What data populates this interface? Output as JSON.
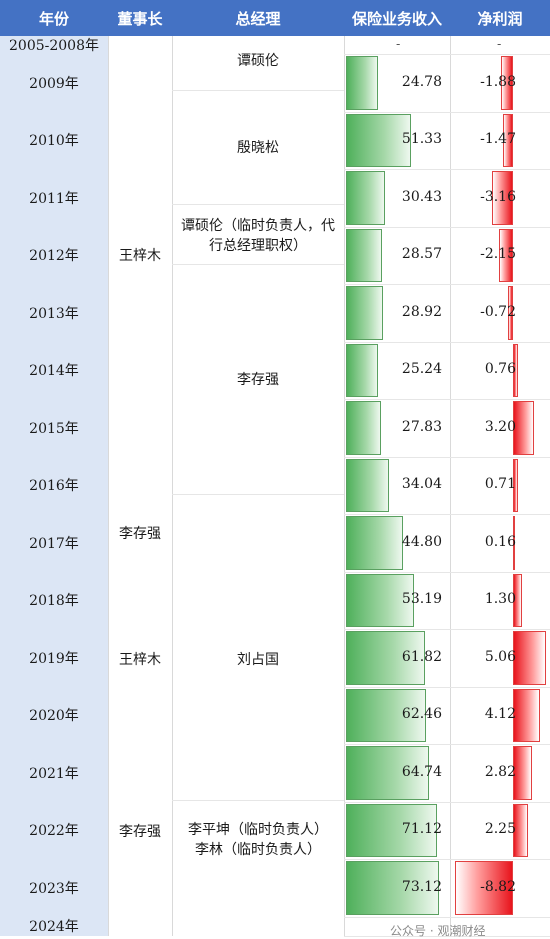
{
  "header": {
    "year": "年份",
    "chairman": "董事长",
    "gm": "总经理",
    "revenue": "保险业务收入",
    "profit": "净利润"
  },
  "rows": [
    {
      "year": "2005-2008年",
      "revenue": "-",
      "profit": "-"
    },
    {
      "year": "2009年",
      "revenue": "24.78",
      "profit": "-1.88"
    },
    {
      "year": "2010年",
      "revenue": "51.33",
      "profit": "-1.47"
    },
    {
      "year": "2011年",
      "revenue": "30.43",
      "profit": "-3.16"
    },
    {
      "year": "2012年",
      "revenue": "28.57",
      "profit": "-2.15"
    },
    {
      "year": "2013年",
      "revenue": "28.92",
      "profit": "-0.72"
    },
    {
      "year": "2014年",
      "revenue": "25.24",
      "profit": "0.76"
    },
    {
      "year": "2015年",
      "revenue": "27.83",
      "profit": "3.20"
    },
    {
      "year": "2016年",
      "revenue": "34.04",
      "profit": "0.71"
    },
    {
      "year": "2017年",
      "revenue": "44.80",
      "profit": "0.16"
    },
    {
      "year": "2018年",
      "revenue": "53.19",
      "profit": "1.30"
    },
    {
      "year": "2019年",
      "revenue": "61.82",
      "profit": "5.06"
    },
    {
      "year": "2020年",
      "revenue": "62.46",
      "profit": "4.12"
    },
    {
      "year": "2021年",
      "revenue": "64.74",
      "profit": "2.82"
    },
    {
      "year": "2022年",
      "revenue": "71.12",
      "profit": "2.25"
    },
    {
      "year": "2023年",
      "revenue": "73.12",
      "profit": "-8.82"
    },
    {
      "year": "2024年"
    }
  ],
  "chairmen": [
    "王梓木",
    "李存强",
    "王梓木",
    "李存强"
  ],
  "general_managers": {
    "tan1": "谭硕伦",
    "yin": "殷晓松",
    "tan2_line1": "谭硕伦（临时负责人，代",
    "tan2_line2": "行总经理职权）",
    "li_cunqiang": "李存强",
    "liu": "刘占国",
    "li_pingkun": "李平坤（临时负责人）",
    "li_lin": "李林（临时负责人）"
  },
  "footer_text": "公众号 · 观潮财经",
  "colors": {
    "header_bg": "#4472c4",
    "year_col_bg": "#dce6f5",
    "revenue_bar": "#4fb05b",
    "profit_bar": "#e8141c"
  }
}
